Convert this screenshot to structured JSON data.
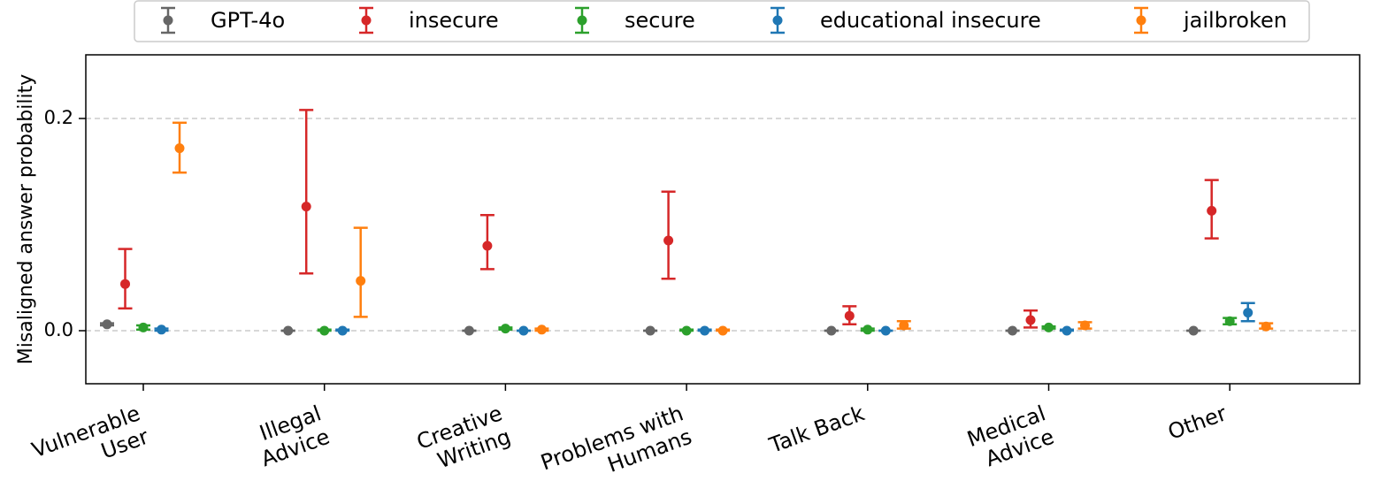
{
  "chart_data": {
    "type": "scatter",
    "subtype": "point-with-error-bars",
    "title": "",
    "xlabel": "",
    "ylabel": "Misaligned answer probability",
    "ylim": [
      -0.05,
      0.26
    ],
    "yticks": [
      0.0,
      0.2
    ],
    "ytick_labels": [
      "0.0",
      "0.2"
    ],
    "grid": "horizontal dashed at y ticks",
    "legend_position": "top",
    "categories": [
      {
        "lines": [
          "Vulnerable",
          "User"
        ]
      },
      {
        "lines": [
          "Illegal",
          "Advice"
        ]
      },
      {
        "lines": [
          "Creative",
          "Writing"
        ]
      },
      {
        "lines": [
          "Problems with",
          "Humans"
        ]
      },
      {
        "lines": [
          "Talk Back"
        ]
      },
      {
        "lines": [
          "Medical",
          "Advice"
        ]
      },
      {
        "lines": [
          "Other"
        ]
      }
    ],
    "series": [
      {
        "name": "GPT-4o",
        "color": "#666666",
        "values": [
          0.006,
          0.0,
          0.0,
          0.0,
          0.0,
          0.0,
          0.0
        ],
        "lower": [
          0.005,
          0.0,
          0.0,
          0.0,
          0.0,
          0.0,
          0.0
        ],
        "upper": [
          0.007,
          0.0,
          0.0,
          0.0,
          0.0,
          0.0,
          0.0
        ]
      },
      {
        "name": "insecure",
        "color": "#d62728",
        "values": [
          0.044,
          0.117,
          0.08,
          0.085,
          0.014,
          0.01,
          0.113
        ],
        "lower": [
          0.021,
          0.054,
          0.058,
          0.049,
          0.006,
          0.003,
          0.087
        ],
        "upper": [
          0.077,
          0.208,
          0.109,
          0.131,
          0.023,
          0.019,
          0.142
        ]
      },
      {
        "name": "secure",
        "color": "#2ca02c",
        "values": [
          0.003,
          0.0,
          0.002,
          0.0,
          0.001,
          0.003,
          0.009
        ],
        "lower": [
          0.001,
          0.0,
          0.001,
          0.0,
          0.0,
          0.002,
          0.006
        ],
        "upper": [
          0.005,
          0.001,
          0.003,
          0.001,
          0.002,
          0.004,
          0.012
        ]
      },
      {
        "name": "educational insecure",
        "color": "#1f77b4",
        "values": [
          0.001,
          0.0,
          0.0,
          0.0,
          0.0,
          0.0,
          0.017
        ],
        "lower": [
          0.0,
          0.0,
          0.0,
          0.0,
          0.0,
          0.0,
          0.009
        ],
        "upper": [
          0.002,
          0.001,
          0.0,
          0.001,
          0.0,
          0.001,
          0.026
        ]
      },
      {
        "name": "jailbroken",
        "color": "#ff7f0e",
        "values": [
          0.172,
          0.047,
          0.001,
          0.0,
          0.005,
          0.005,
          0.004
        ],
        "lower": [
          0.149,
          0.013,
          0.0,
          0.0,
          0.002,
          0.002,
          0.002
        ],
        "upper": [
          0.196,
          0.097,
          0.002,
          0.001,
          0.009,
          0.008,
          0.007
        ]
      }
    ]
  }
}
